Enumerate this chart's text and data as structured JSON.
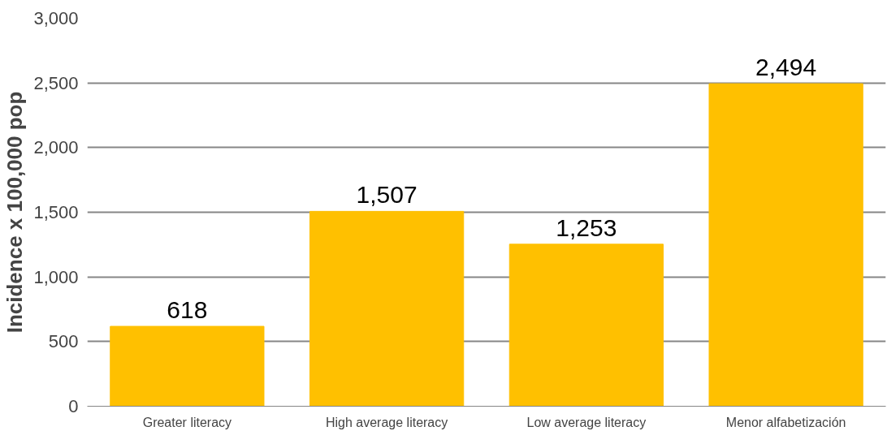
{
  "chart_data": {
    "type": "bar",
    "ylabel": "Incidence x 100,000 pop",
    "categories": [
      "Greater literacy",
      "High average literacy",
      "Low average literacy",
      "Menor alfabetización"
    ],
    "values": [
      618,
      1507,
      1253,
      2494
    ],
    "color": "#ffc000",
    "value_labels": [
      "618",
      "1,507",
      "1,253",
      "2,494"
    ],
    "grid": "y",
    "ylim": [
      0,
      3000
    ],
    "yticks": [
      {
        "value": 0,
        "label": "0"
      },
      {
        "value": 500,
        "label": "500"
      },
      {
        "value": 1000,
        "label": "1,000"
      },
      {
        "value": 1500,
        "label": "1,500"
      },
      {
        "value": 2000,
        "label": "2,000"
      },
      {
        "value": 2500,
        "label": "2,500"
      },
      {
        "value": 3000,
        "label": "3,000"
      }
    ]
  }
}
